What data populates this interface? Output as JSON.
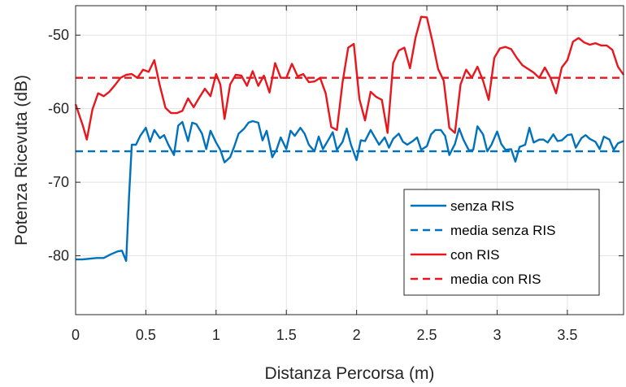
{
  "chart_data": {
    "type": "line",
    "title": "",
    "xlabel": "Distanza Percorsa (m)",
    "ylabel": "Potenza Ricevuta (dB)",
    "xlim": [
      0,
      3.9
    ],
    "ylim": [
      -88,
      -46
    ],
    "xticks": [
      0,
      0.5,
      1,
      1.5,
      2,
      2.5,
      3,
      3.5
    ],
    "xtick_labels": [
      "0",
      "0.5",
      "1",
      "1.5",
      "2",
      "2.5",
      "3",
      "3.5"
    ],
    "yticks": [
      -80,
      -70,
      -60,
      -50
    ],
    "ytick_labels": [
      "-80",
      "-70",
      "-60",
      "-50"
    ],
    "grid": true,
    "legend_position": "bottom-right",
    "series": [
      {
        "name": "senza RIS",
        "color": "#0072BD",
        "style": "solid",
        "x": [
          0.0,
          0.05,
          0.1,
          0.15,
          0.2,
          0.25,
          0.3,
          0.33,
          0.36,
          0.38,
          0.4,
          0.43,
          0.46,
          0.5,
          0.53,
          0.56,
          0.6,
          0.63,
          0.66,
          0.7,
          0.73,
          0.76,
          0.8,
          0.83,
          0.86,
          0.9,
          0.93,
          0.96,
          1.0,
          1.03,
          1.06,
          1.1,
          1.13,
          1.16,
          1.2,
          1.23,
          1.26,
          1.3,
          1.33,
          1.36,
          1.4,
          1.43,
          1.46,
          1.5,
          1.53,
          1.56,
          1.6,
          1.63,
          1.66,
          1.7,
          1.73,
          1.76,
          1.8,
          1.83,
          1.86,
          1.9,
          1.93,
          1.96,
          2.0,
          2.03,
          2.06,
          2.1,
          2.13,
          2.16,
          2.2,
          2.23,
          2.26,
          2.3,
          2.33,
          2.36,
          2.4,
          2.43,
          2.46,
          2.5,
          2.53,
          2.56,
          2.6,
          2.63,
          2.66,
          2.7,
          2.73,
          2.76,
          2.8,
          2.83,
          2.86,
          2.9,
          2.93,
          2.96,
          3.0,
          3.03,
          3.06,
          3.1,
          3.13,
          3.16,
          3.2,
          3.23,
          3.26,
          3.3,
          3.33,
          3.36,
          3.4,
          3.43,
          3.46,
          3.5,
          3.53,
          3.56,
          3.6,
          3.63,
          3.66,
          3.7,
          3.73,
          3.76,
          3.8,
          3.83,
          3.86,
          3.9
        ],
        "values": [
          -80.5,
          -80.5,
          -80.4,
          -80.3,
          -80.3,
          -79.8,
          -79.4,
          -79.3,
          -80.7,
          -72.0,
          -64.9,
          -64.9,
          -63.7,
          -62.6,
          -64.5,
          -62.9,
          -64.0,
          -63.6,
          -64.9,
          -66.3,
          -62.3,
          -61.8,
          -64.4,
          -61.9,
          -62.1,
          -63.4,
          -65.5,
          -63.0,
          -64.6,
          -65.6,
          -67.3,
          -66.6,
          -65.1,
          -63.4,
          -62.7,
          -61.9,
          -61.7,
          -61.9,
          -64.3,
          -63.0,
          -66.6,
          -65.6,
          -63.9,
          -65.5,
          -63.0,
          -63.7,
          -62.6,
          -63.4,
          -64.9,
          -65.8,
          -63.8,
          -65.5,
          -64.2,
          -63.2,
          -65.6,
          -64.5,
          -62.7,
          -64.9,
          -67.0,
          -64.3,
          -64.4,
          -62.9,
          -63.9,
          -64.9,
          -63.9,
          -65.3,
          -64.1,
          -63.4,
          -64.5,
          -64.9,
          -64.4,
          -63.9,
          -65.6,
          -65.1,
          -63.5,
          -62.9,
          -62.9,
          -63.7,
          -66.3,
          -64.8,
          -62.7,
          -64.2,
          -65.7,
          -65.6,
          -62.4,
          -63.5,
          -65.8,
          -64.9,
          -63.1,
          -64.8,
          -65.6,
          -65.5,
          -67.2,
          -65.2,
          -64.9,
          -62.6,
          -64.6,
          -64.2,
          -64.2,
          -64.6,
          -63.5,
          -64.4,
          -64.3,
          -63.6,
          -63.5,
          -65.3,
          -64.0,
          -63.6,
          -64.1,
          -64.5,
          -65.5,
          -63.8,
          -64.2,
          -65.6,
          -64.7,
          -64.4
        ]
      },
      {
        "name": "media senza RIS",
        "color": "#0072BD",
        "style": "dashed",
        "x": [
          0,
          3.9
        ],
        "values": [
          -65.8,
          -65.8
        ]
      },
      {
        "name": "con RIS",
        "color": "#E8161D",
        "style": "solid",
        "x": [
          0.0,
          0.05,
          0.08,
          0.12,
          0.16,
          0.2,
          0.24,
          0.28,
          0.32,
          0.36,
          0.4,
          0.44,
          0.48,
          0.52,
          0.56,
          0.6,
          0.64,
          0.68,
          0.72,
          0.76,
          0.8,
          0.84,
          0.88,
          0.92,
          0.96,
          1.0,
          1.03,
          1.06,
          1.1,
          1.14,
          1.18,
          1.22,
          1.26,
          1.3,
          1.34,
          1.38,
          1.42,
          1.46,
          1.5,
          1.54,
          1.58,
          1.62,
          1.66,
          1.7,
          1.74,
          1.78,
          1.82,
          1.86,
          1.9,
          1.94,
          1.98,
          2.02,
          2.06,
          2.1,
          2.14,
          2.18,
          2.22,
          2.26,
          2.3,
          2.34,
          2.38,
          2.42,
          2.46,
          2.5,
          2.54,
          2.58,
          2.62,
          2.66,
          2.7,
          2.74,
          2.78,
          2.82,
          2.86,
          2.9,
          2.94,
          2.98,
          3.02,
          3.06,
          3.1,
          3.14,
          3.18,
          3.22,
          3.26,
          3.3,
          3.34,
          3.38,
          3.42,
          3.46,
          3.5,
          3.54,
          3.58,
          3.62,
          3.66,
          3.7,
          3.74,
          3.78,
          3.82,
          3.86,
          3.9
        ],
        "values": [
          -59.4,
          -62.2,
          -64.2,
          -60.1,
          -57.9,
          -58.3,
          -57.7,
          -56.8,
          -55.8,
          -55.4,
          -55.3,
          -55.8,
          -54.7,
          -55.0,
          -53.4,
          -56.9,
          -59.9,
          -60.6,
          -60.6,
          -60.3,
          -58.6,
          -59.8,
          -58.5,
          -57.3,
          -58.3,
          -55.3,
          -56.7,
          -61.4,
          -56.7,
          -55.4,
          -55.5,
          -56.9,
          -54.9,
          -56.9,
          -55.5,
          -57.8,
          -53.8,
          -55.8,
          -55.8,
          -53.9,
          -55.6,
          -55.3,
          -56.4,
          -56.3,
          -55.8,
          -57.9,
          -62.5,
          -62.9,
          -56.4,
          -51.7,
          -51.2,
          -58.7,
          -61.6,
          -57.7,
          -58.4,
          -58.8,
          -63.3,
          -53.8,
          -52.1,
          -51.7,
          -54.5,
          -50.3,
          -47.5,
          -47.6,
          -50.9,
          -54.6,
          -56.2,
          -62.6,
          -63.3,
          -56.7,
          -54.7,
          -55.8,
          -54.3,
          -56.2,
          -58.8,
          -53.1,
          -51.8,
          -51.6,
          -51.9,
          -53.1,
          -54.1,
          -54.6,
          -55.1,
          -55.8,
          -54.4,
          -55.8,
          -57.9,
          -54.4,
          -53.4,
          -50.9,
          -50.4,
          -51.0,
          -51.3,
          -51.1,
          -51.4,
          -51.4,
          -52.0,
          -54.3,
          -55.4
        ]
      },
      {
        "name": "media con RIS",
        "color": "#E8161D",
        "style": "dashed",
        "x": [
          0,
          3.9
        ],
        "values": [
          -55.8,
          -55.8
        ]
      }
    ]
  }
}
